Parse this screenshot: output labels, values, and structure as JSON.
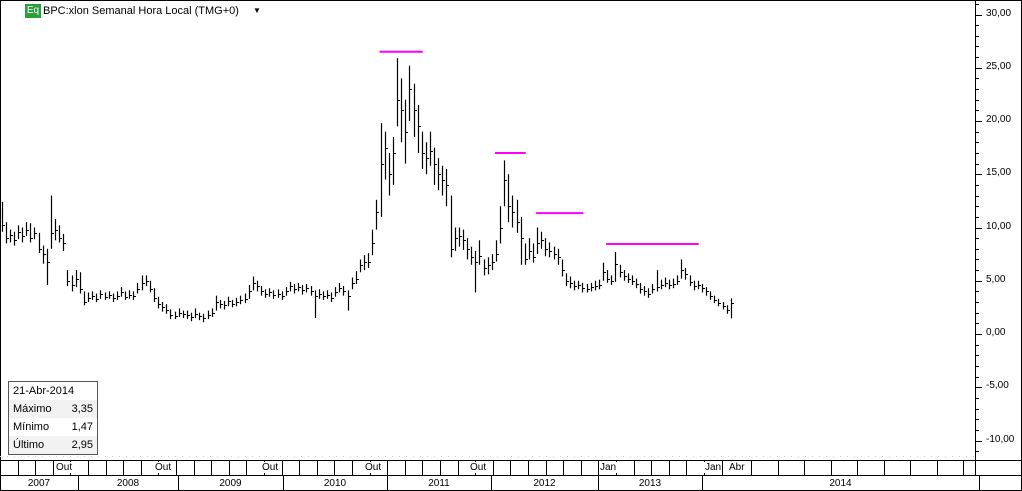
{
  "header": {
    "badge": "Eq",
    "title": "BPC:xlon Semanal Hora Local (TMG+0)",
    "dropdown_icon": "triangle-down"
  },
  "infobox": {
    "date": "21-Abr-2014",
    "rows": [
      {
        "label": "Máximo",
        "value": "3,35"
      },
      {
        "label": "Mínimo",
        "value": "1,47"
      },
      {
        "label": "Último",
        "value": "2,95"
      }
    ]
  },
  "chart_data": {
    "type": "ohlc-bar",
    "interval": "Semanal",
    "ylim": [
      -12,
      31
    ],
    "y_ticks": [
      "30,00",
      "25,00",
      "20,00",
      "15,00",
      "10,00",
      "5,00",
      "0,00",
      "-5,00",
      "-10,00"
    ],
    "y_tick_values": [
      30,
      25,
      20,
      15,
      10,
      5,
      0,
      -5,
      -10
    ],
    "month_labels": [
      "Out",
      "Out",
      "Out",
      "Out",
      "Out",
      "Jan",
      "Jan",
      "Abr"
    ],
    "year_labels": [
      "2007",
      "2008",
      "2009",
      "2010",
      "2011",
      "2012",
      "2013",
      "2014"
    ],
    "bar_fields": [
      "high",
      "low",
      "close"
    ],
    "bars": [
      [
        12.4,
        9.6,
        10.2
      ],
      [
        10.5,
        8.5,
        9.0
      ],
      [
        9.8,
        8.6,
        9.3
      ],
      [
        9.6,
        8.3,
        8.8
      ],
      [
        10.2,
        8.9,
        9.6
      ],
      [
        10.0,
        8.6,
        9.2
      ],
      [
        10.5,
        9.2,
        9.8
      ],
      [
        10.4,
        8.6,
        9.0
      ],
      [
        10.0,
        8.9,
        9.5
      ],
      [
        9.5,
        7.6,
        8.0
      ],
      [
        8.3,
        6.6,
        7.5
      ],
      [
        8.0,
        4.6,
        6.8
      ],
      [
        13.0,
        8.0,
        9.5
      ],
      [
        10.8,
        8.8,
        9.8
      ],
      [
        10.2,
        8.6,
        9.0
      ],
      [
        9.4,
        7.8,
        8.5
      ],
      [
        6.0,
        4.5,
        5.0
      ],
      [
        5.5,
        4.0,
        4.6
      ],
      [
        6.0,
        4.4,
        5.2
      ],
      [
        5.8,
        3.8,
        4.2
      ],
      [
        4.0,
        2.7,
        3.0
      ],
      [
        3.9,
        3.0,
        3.4
      ],
      [
        4.0,
        3.2,
        3.6
      ],
      [
        3.8,
        3.0,
        3.3
      ],
      [
        4.1,
        3.3,
        3.8
      ],
      [
        3.9,
        3.2,
        3.5
      ],
      [
        4.0,
        3.3,
        3.7
      ],
      [
        3.8,
        3.0,
        3.4
      ],
      [
        4.0,
        3.2,
        3.6
      ],
      [
        4.4,
        3.5,
        3.9
      ],
      [
        4.0,
        3.2,
        3.5
      ],
      [
        4.1,
        3.3,
        3.7
      ],
      [
        4.0,
        3.2,
        3.6
      ],
      [
        4.8,
        3.8,
        4.2
      ],
      [
        5.5,
        4.1,
        4.8
      ],
      [
        5.5,
        4.5,
        5.0
      ],
      [
        5.0,
        3.9,
        4.2
      ],
      [
        4.3,
        3.0,
        3.4
      ],
      [
        3.5,
        2.4,
        2.8
      ],
      [
        3.0,
        2.1,
        2.5
      ],
      [
        2.8,
        1.9,
        2.3
      ],
      [
        2.3,
        1.4,
        1.8
      ],
      [
        2.1,
        1.4,
        1.7
      ],
      [
        2.4,
        1.6,
        2.0
      ],
      [
        2.2,
        1.5,
        1.9
      ],
      [
        2.2,
        1.4,
        1.8
      ],
      [
        2.0,
        1.2,
        1.6
      ],
      [
        2.4,
        1.5,
        1.9
      ],
      [
        2.0,
        1.3,
        1.7
      ],
      [
        1.9,
        1.1,
        1.5
      ],
      [
        2.2,
        1.4,
        1.8
      ],
      [
        2.4,
        1.6,
        2.0
      ],
      [
        3.6,
        2.2,
        3.0
      ],
      [
        3.2,
        2.4,
        2.8
      ],
      [
        3.1,
        2.3,
        2.7
      ],
      [
        3.5,
        2.6,
        3.1
      ],
      [
        3.2,
        2.5,
        2.8
      ],
      [
        3.4,
        2.6,
        3.0
      ],
      [
        3.6,
        2.8,
        3.2
      ],
      [
        3.8,
        2.9,
        3.3
      ],
      [
        4.6,
        3.3,
        4.0
      ],
      [
        5.4,
        4.1,
        4.8
      ],
      [
        5.0,
        4.0,
        4.5
      ],
      [
        4.5,
        3.6,
        4.0
      ],
      [
        4.2,
        3.4,
        3.8
      ],
      [
        4.3,
        3.5,
        3.9
      ],
      [
        4.1,
        3.3,
        3.7
      ],
      [
        4.2,
        3.4,
        3.8
      ],
      [
        4.0,
        3.2,
        3.6
      ],
      [
        4.4,
        3.6,
        4.0
      ],
      [
        4.9,
        4.0,
        4.5
      ],
      [
        4.7,
        3.8,
        4.2
      ],
      [
        4.8,
        4.0,
        4.4
      ],
      [
        4.6,
        3.7,
        4.1
      ],
      [
        4.7,
        3.9,
        4.3
      ],
      [
        4.5,
        3.6,
        4.0
      ],
      [
        4.1,
        1.5,
        3.6
      ],
      [
        4.2,
        3.3,
        3.8
      ],
      [
        4.0,
        3.2,
        3.6
      ],
      [
        4.1,
        3.3,
        3.7
      ],
      [
        3.9,
        3.0,
        3.4
      ],
      [
        4.4,
        3.5,
        3.9
      ],
      [
        4.8,
        3.9,
        4.3
      ],
      [
        4.5,
        3.6,
        4.0
      ],
      [
        4.1,
        2.2,
        3.6
      ],
      [
        5.3,
        4.2,
        4.8
      ],
      [
        5.9,
        4.7,
        5.2
      ],
      [
        7.0,
        5.8,
        6.5
      ],
      [
        7.4,
        6.0,
        6.8
      ],
      [
        7.6,
        6.2,
        6.8
      ],
      [
        9.8,
        7.4,
        8.5
      ],
      [
        12.6,
        9.8,
        11.5
      ],
      [
        19.8,
        11.0,
        16.0
      ],
      [
        19.0,
        14.5,
        17.5
      ],
      [
        17.0,
        13.0,
        15.0
      ],
      [
        18.5,
        14.0,
        17.0
      ],
      [
        25.9,
        19.5,
        22.0
      ],
      [
        24.0,
        18.0,
        21.0
      ],
      [
        22.0,
        16.0,
        19.0
      ],
      [
        25.2,
        20.0,
        23.0
      ],
      [
        23.5,
        18.5,
        21.0
      ],
      [
        21.5,
        17.0,
        19.5
      ],
      [
        19.0,
        15.5,
        17.0
      ],
      [
        18.0,
        15.0,
        16.5
      ],
      [
        19.0,
        15.8,
        17.2
      ],
      [
        17.5,
        14.0,
        16.0
      ],
      [
        16.5,
        13.5,
        15.0
      ],
      [
        15.8,
        13.0,
        14.5
      ],
      [
        15.5,
        12.0,
        14.0
      ],
      [
        13.0,
        7.2,
        8.0
      ],
      [
        10.0,
        7.8,
        9.0
      ],
      [
        10.0,
        8.2,
        9.2
      ],
      [
        9.8,
        7.9,
        8.8
      ],
      [
        9.0,
        7.0,
        8.0
      ],
      [
        8.2,
        6.5,
        7.2
      ],
      [
        7.8,
        3.9,
        6.8
      ],
      [
        8.8,
        6.5,
        7.3
      ],
      [
        7.0,
        5.5,
        6.2
      ],
      [
        7.2,
        5.6,
        6.5
      ],
      [
        7.5,
        6.0,
        6.8
      ],
      [
        8.8,
        6.8,
        7.5
      ],
      [
        12.0,
        8.5,
        10.0
      ],
      [
        16.3,
        12.0,
        14.5
      ],
      [
        15.0,
        10.5,
        12.0
      ],
      [
        13.0,
        10.0,
        11.5
      ],
      [
        12.6,
        9.5,
        10.5
      ],
      [
        11.0,
        6.5,
        9.0
      ],
      [
        8.5,
        6.5,
        7.0
      ],
      [
        9.0,
        7.0,
        7.8
      ],
      [
        8.5,
        6.7,
        7.2
      ],
      [
        10.0,
        7.5,
        8.5
      ],
      [
        9.6,
        8.0,
        8.8
      ],
      [
        9.0,
        7.3,
        8.0
      ],
      [
        8.6,
        7.2,
        7.8
      ],
      [
        8.2,
        7.0,
        7.5
      ],
      [
        8.0,
        6.5,
        7.2
      ],
      [
        7.0,
        5.4,
        6.0
      ],
      [
        5.7,
        4.5,
        5.0
      ],
      [
        5.4,
        4.3,
        4.8
      ],
      [
        5.0,
        4.1,
        4.5
      ],
      [
        5.0,
        4.2,
        4.6
      ],
      [
        4.8,
        3.9,
        4.3
      ],
      [
        4.7,
        3.9,
        4.2
      ],
      [
        4.8,
        4.0,
        4.4
      ],
      [
        5.0,
        4.1,
        4.5
      ],
      [
        5.1,
        4.2,
        4.6
      ],
      [
        6.7,
        5.0,
        5.8
      ],
      [
        6.0,
        4.8,
        5.2
      ],
      [
        5.5,
        4.6,
        5.0
      ],
      [
        7.7,
        4.9,
        6.6
      ],
      [
        6.5,
        5.3,
        5.8
      ],
      [
        6.0,
        5.0,
        5.4
      ],
      [
        5.7,
        4.8,
        5.2
      ],
      [
        5.5,
        4.6,
        5.0
      ],
      [
        5.2,
        4.3,
        4.7
      ],
      [
        4.8,
        3.8,
        4.2
      ],
      [
        4.5,
        3.6,
        4.0
      ],
      [
        4.3,
        3.4,
        3.8
      ],
      [
        4.7,
        3.8,
        4.2
      ],
      [
        6.0,
        4.0,
        4.4
      ],
      [
        5.1,
        4.2,
        4.6
      ],
      [
        5.3,
        4.4,
        4.8
      ],
      [
        5.1,
        4.2,
        4.6
      ],
      [
        5.2,
        4.3,
        4.7
      ],
      [
        5.5,
        4.6,
        5.0
      ],
      [
        7.0,
        5.2,
        6.0
      ],
      [
        6.2,
        5.1,
        5.6
      ],
      [
        5.5,
        4.5,
        4.9
      ],
      [
        5.0,
        4.1,
        4.5
      ],
      [
        5.0,
        4.2,
        4.6
      ],
      [
        4.7,
        3.9,
        4.3
      ],
      [
        4.4,
        3.6,
        4.0
      ],
      [
        4.0,
        3.2,
        3.6
      ],
      [
        3.6,
        2.9,
        3.2
      ],
      [
        3.3,
        2.6,
        2.9
      ],
      [
        3.0,
        2.3,
        2.6
      ],
      [
        2.7,
        1.9,
        2.3
      ],
      [
        3.35,
        1.47,
        2.95
      ]
    ],
    "resistance_lines": [
      {
        "value": 26.5,
        "from_bar": 92,
        "to_bar": 102
      },
      {
        "value": 17.0,
        "from_bar": 120,
        "to_bar": 127
      },
      {
        "value": 11.35,
        "from_bar": 130,
        "to_bar": 141
      },
      {
        "value": 8.45,
        "from_bar": 147,
        "to_bar": 169
      }
    ],
    "colors": {
      "bars": "#000000",
      "resistance": "#ff00ff",
      "badge": "#2e9e3e"
    }
  }
}
